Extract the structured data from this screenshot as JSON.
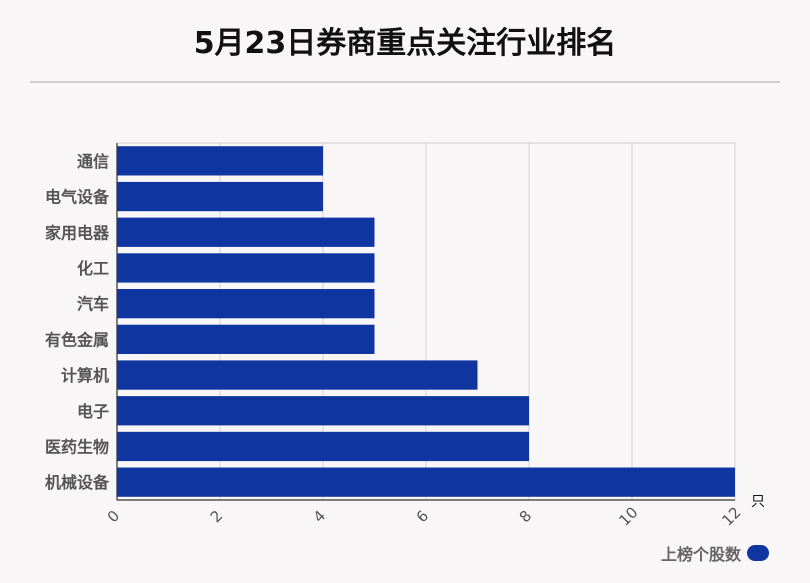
{
  "title": "5月23日券商重点关注行业排名",
  "chart_data": {
    "type": "bar",
    "orientation": "horizontal",
    "categories": [
      "通信",
      "电气设备",
      "家用电器",
      "化工",
      "汽车",
      "有色金属",
      "计算机",
      "电子",
      "医药生物",
      "机械设备"
    ],
    "series": [
      {
        "name": "上榜个股数",
        "values": [
          4,
          4,
          5,
          5,
          5,
          5,
          7,
          8,
          8,
          12
        ]
      }
    ],
    "xlim": [
      0,
      12
    ],
    "xticks": [
      0,
      2,
      4,
      6,
      8,
      10,
      12
    ],
    "xunit": "只",
    "grid": true,
    "legend_position": "bottom-right",
    "bar_color": "#0e35a0"
  }
}
